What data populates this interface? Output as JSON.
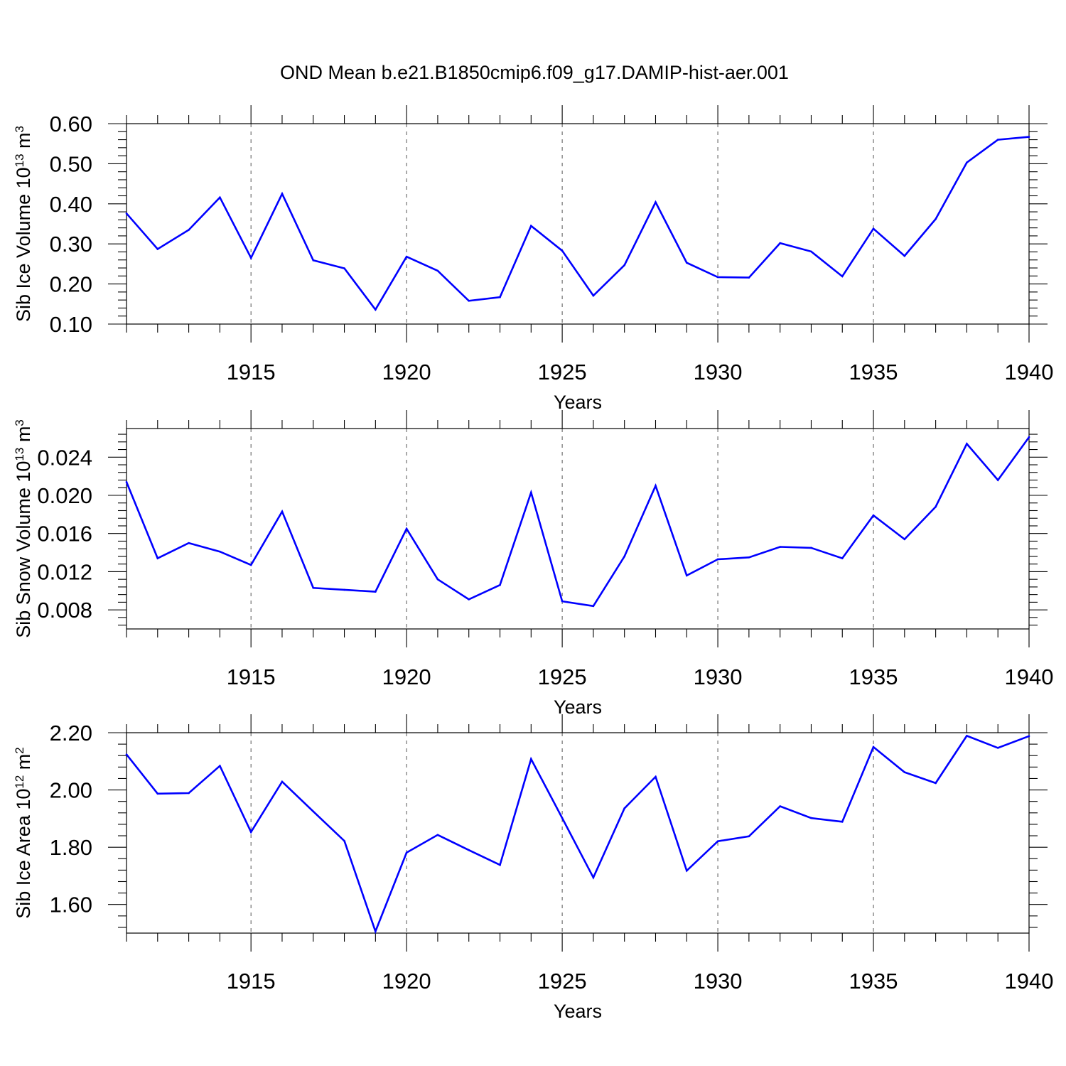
{
  "title": "OND Mean b.e21.B1850cmip6.f09_g17.DAMIP-hist-aer.001",
  "colors": {
    "line": "#0000ff",
    "axis": "#000000",
    "grid": "#555555"
  },
  "chart_data": [
    {
      "type": "line",
      "ylabel": {
        "prefix": "Sib Ice Volume 10",
        "exp": "13",
        "unit": " m",
        "unit_exp": "3"
      },
      "xlabel": "Years",
      "xlim": [
        1911,
        1940
      ],
      "xticks": [
        "1915",
        "1920",
        "1925",
        "1930",
        "1935",
        "1940"
      ],
      "ylim": [
        0.1,
        0.6
      ],
      "yticks": [
        "0.10",
        "0.20",
        "0.30",
        "0.40",
        "0.50",
        "0.60"
      ],
      "x": [
        1911,
        1912,
        1913,
        1914,
        1915,
        1916,
        1917,
        1918,
        1919,
        1920,
        1921,
        1922,
        1923,
        1924,
        1925,
        1926,
        1927,
        1928,
        1929,
        1930,
        1931,
        1932,
        1933,
        1934,
        1935,
        1936,
        1937,
        1938,
        1939,
        1940
      ],
      "series": [
        {
          "name": "Sib Ice Volume",
          "values": [
            0.376,
            0.287,
            0.335,
            0.416,
            0.265,
            0.425,
            0.259,
            0.239,
            0.136,
            0.268,
            0.233,
            0.158,
            0.167,
            0.345,
            0.283,
            0.171,
            0.247,
            0.404,
            0.253,
            0.217,
            0.216,
            0.302,
            0.281,
            0.219,
            0.338,
            0.27,
            0.362,
            0.503,
            0.56,
            0.567
          ]
        }
      ]
    },
    {
      "type": "line",
      "ylabel": {
        "prefix": "Sib Snow Volume 10",
        "exp": "13",
        "unit": " m",
        "unit_exp": "3"
      },
      "xlabel": "Years",
      "xlim": [
        1911,
        1940
      ],
      "xticks": [
        "1915",
        "1920",
        "1925",
        "1930",
        "1935",
        "1940"
      ],
      "ylim": [
        0.006,
        0.027
      ],
      "yticks": [
        "0.008",
        "0.012",
        "0.016",
        "0.020",
        "0.024"
      ],
      "x": [
        1911,
        1912,
        1913,
        1914,
        1915,
        1916,
        1917,
        1918,
        1919,
        1920,
        1921,
        1922,
        1923,
        1924,
        1925,
        1926,
        1927,
        1928,
        1929,
        1930,
        1931,
        1932,
        1933,
        1934,
        1935,
        1936,
        1937,
        1938,
        1939,
        1940
      ],
      "series": [
        {
          "name": "Sib Snow Volume",
          "values": [
            0.0214,
            0.0134,
            0.015,
            0.0141,
            0.0127,
            0.0183,
            0.0103,
            0.0101,
            0.0099,
            0.0165,
            0.0112,
            0.0091,
            0.0106,
            0.0203,
            0.0089,
            0.0084,
            0.0136,
            0.021,
            0.0116,
            0.0133,
            0.0135,
            0.0146,
            0.0145,
            0.0134,
            0.0179,
            0.0154,
            0.0188,
            0.0254,
            0.0216,
            0.0261
          ]
        }
      ]
    },
    {
      "type": "line",
      "ylabel": {
        "prefix": "Sib Ice Area 10",
        "exp": "12",
        "unit": " m",
        "unit_exp": "2"
      },
      "xlabel": "Years",
      "xlim": [
        1911,
        1940
      ],
      "xticks": [
        "1915",
        "1920",
        "1925",
        "1930",
        "1935",
        "1940"
      ],
      "ylim": [
        1.5,
        2.2
      ],
      "yticks": [
        "1.60",
        "1.80",
        "2.00",
        "2.20"
      ],
      "x": [
        1911,
        1912,
        1913,
        1914,
        1915,
        1916,
        1917,
        1918,
        1919,
        1920,
        1921,
        1922,
        1923,
        1924,
        1925,
        1926,
        1927,
        1928,
        1929,
        1930,
        1931,
        1932,
        1933,
        1934,
        1935,
        1936,
        1937,
        1938,
        1939,
        1940
      ],
      "series": [
        {
          "name": "Sib Ice Area",
          "values": [
            2.124,
            1.987,
            1.989,
            2.084,
            1.853,
            2.029,
            1.925,
            1.822,
            1.506,
            1.781,
            1.843,
            1.79,
            1.738,
            2.108,
            1.902,
            1.694,
            1.936,
            2.046,
            1.718,
            1.821,
            1.838,
            1.943,
            1.902,
            1.889,
            2.15,
            2.062,
            2.024,
            2.189,
            2.147,
            2.188
          ]
        }
      ]
    }
  ]
}
